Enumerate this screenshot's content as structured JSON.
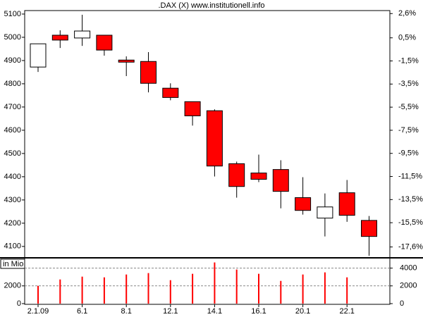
{
  "chart_data": [
    {
      "type": "candlestick",
      "title": ".DAX (X) www.institutionell.info",
      "categories": [
        "2.1.09",
        null,
        "6.1",
        null,
        "8.1",
        null,
        "12.1",
        null,
        "14.1",
        null,
        "16.1",
        null,
        "20.1",
        null,
        "22.1",
        null
      ],
      "open": [
        4872,
        5009,
        4997,
        5009,
        4902,
        4896,
        4781,
        4723,
        4684,
        4456,
        4416,
        4431,
        4310,
        4222,
        4331,
        4212
      ],
      "high": [
        4972,
        5030,
        5097,
        5009,
        4918,
        4936,
        4802,
        4723,
        4690,
        4465,
        4495,
        4471,
        4398,
        4328,
        4386,
        4231
      ],
      "low": [
        4851,
        4954,
        4963,
        4921,
        4833,
        4763,
        4729,
        4620,
        4401,
        4310,
        4377,
        4264,
        4237,
        4143,
        4206,
        4060
      ],
      "close": [
        4972,
        4988,
        5027,
        4945,
        4893,
        4802,
        4741,
        4662,
        4446,
        4358,
        4389,
        4337,
        4255,
        4270,
        4234,
        4143
      ],
      "up_color": "#ffffff",
      "down_color": "#ff0000",
      "ylim": [
        4051,
        5115
      ],
      "yticks": [
        4100,
        4200,
        4300,
        4400,
        4500,
        4600,
        4700,
        4800,
        4900,
        5000,
        5100
      ],
      "y2lim": [
        -18.54,
        2.86
      ],
      "y2ticks": [
        {
          "value": 2.6,
          "label": "2,6%"
        },
        {
          "value": 0.5,
          "label": "0,5%"
        },
        {
          "value": -1.5,
          "label": "-1,5%"
        },
        {
          "value": -3.5,
          "label": "-3,5%"
        },
        {
          "value": -5.5,
          "label": "-5,5%"
        },
        {
          "value": -7.5,
          "label": "-7,5%"
        },
        {
          "value": -9.5,
          "label": "-9,5%"
        },
        {
          "value": -11.5,
          "label": "-11,5%"
        },
        {
          "value": -13.5,
          "label": "-13,5%"
        },
        {
          "value": -15.5,
          "label": "-15,5%"
        },
        {
          "value": -17.6,
          "label": "-17,6%"
        }
      ]
    },
    {
      "type": "bar",
      "ylabel": "in Mio",
      "color": "#ff0000",
      "values": [
        2000,
        2720,
        3040,
        2960,
        3280,
        3440,
        2640,
        3360,
        4640,
        3840,
        3360,
        2560,
        3280,
        3520,
        2960,
        null
      ],
      "ylim": [
        0,
        5000
      ],
      "yticks": [
        0,
        2000
      ],
      "y2lim": [
        0,
        5000
      ],
      "y2ticks": [
        0,
        2000,
        4000
      ],
      "grid": true
    }
  ]
}
